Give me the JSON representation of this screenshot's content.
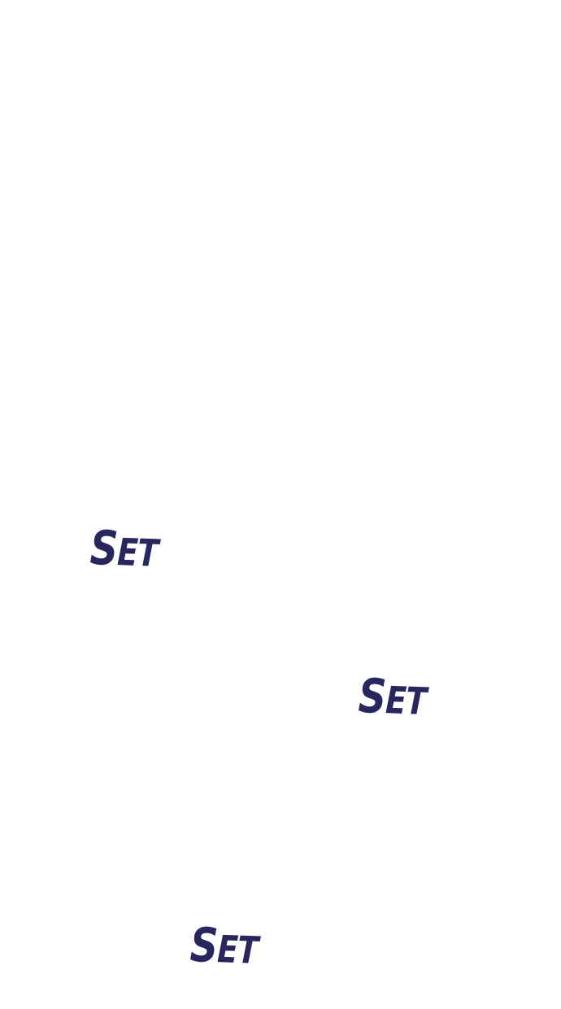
{
  "panel": {
    "background": "#ffffff",
    "sfx_color": "#28265e",
    "sound_effects": [
      {
        "first": "S",
        "rest": "ET"
      },
      {
        "first": "S",
        "rest": "ET"
      },
      {
        "first": "S",
        "rest": "ET"
      }
    ]
  }
}
